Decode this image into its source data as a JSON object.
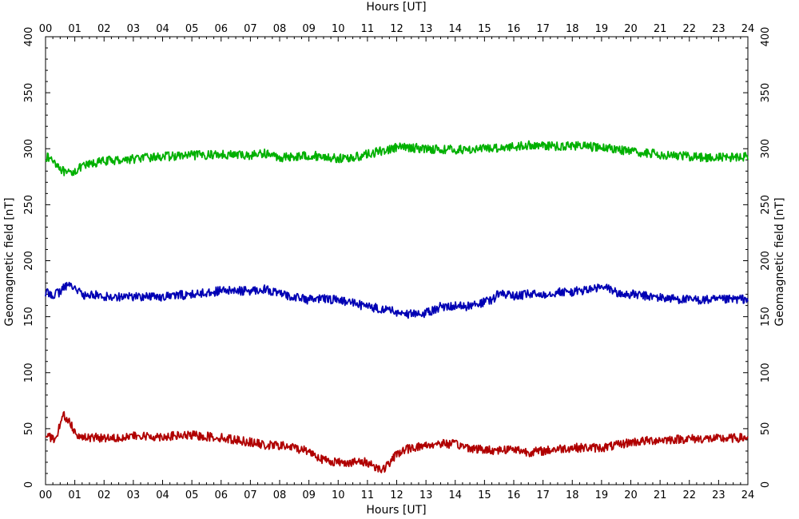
{
  "chart_data": {
    "type": "line",
    "xlabel_top": "Hours [UT]",
    "xlabel_bottom": "Hours [UT]",
    "ylabel_left": "Geomagnetic field [nT]",
    "ylabel_right": "Geomagnetic field [nT]",
    "xlim": [
      0,
      24
    ],
    "ylim": [
      0,
      400
    ],
    "x_ticks": [
      "00",
      "01",
      "02",
      "03",
      "04",
      "05",
      "06",
      "07",
      "08",
      "09",
      "10",
      "11",
      "12",
      "13",
      "14",
      "15",
      "16",
      "17",
      "18",
      "19",
      "20",
      "21",
      "22",
      "23",
      "24"
    ],
    "y_ticks": [
      "0",
      "50",
      "100",
      "150",
      "200",
      "250",
      "300",
      "350",
      "400"
    ],
    "grid": false,
    "series": [
      {
        "color": "#00b000",
        "x": [
          0,
          0.3,
          0.5,
          0.7,
          0.9,
          1.2,
          1.5,
          2,
          3,
          4,
          5,
          6,
          7,
          7.5,
          8,
          8.5,
          9,
          9.5,
          10,
          10.5,
          11,
          11.5,
          12,
          12.5,
          13,
          14,
          15,
          15.5,
          16,
          16.5,
          17,
          17.5,
          18,
          18.5,
          19,
          19.5,
          20,
          21,
          22,
          23,
          24
        ],
        "values": [
          293,
          289,
          283,
          277,
          279,
          283,
          286,
          289,
          291,
          293,
          294,
          295,
          294,
          296,
          292,
          293,
          294,
          293,
          291,
          292,
          295,
          298,
          301,
          301,
          300,
          299,
          300,
          301,
          302,
          303,
          303,
          302,
          303,
          302,
          301,
          300,
          297,
          295,
          293,
          292,
          293
        ]
      },
      {
        "color": "#0000b4",
        "x": [
          0,
          0.3,
          0.5,
          0.7,
          0.9,
          1.1,
          1.3,
          1.6,
          2,
          3,
          4,
          5,
          6,
          7,
          7.5,
          8,
          8.5,
          9,
          9.5,
          10,
          10.5,
          11,
          11.5,
          12,
          12.5,
          13,
          13.5,
          14,
          14.5,
          15,
          15.3,
          15.5,
          16,
          16.5,
          17,
          17.5,
          18,
          18.5,
          19,
          19.3,
          19.6,
          20,
          21,
          22,
          23,
          24
        ],
        "values": [
          171,
          170,
          172,
          178,
          178,
          174,
          168,
          170,
          168,
          168,
          168,
          170,
          173,
          173,
          175,
          170,
          168,
          165,
          166,
          165,
          162,
          159,
          157,
          154,
          152,
          153,
          159,
          160,
          159,
          163,
          165,
          172,
          168,
          170,
          170,
          172,
          172,
          174,
          176,
          175,
          170,
          170,
          167,
          165,
          165,
          166
        ]
      },
      {
        "color": "#b00000",
        "x": [
          0,
          0.2,
          0.35,
          0.5,
          0.6,
          0.8,
          1.0,
          1.2,
          1.5,
          2,
          3,
          4,
          5,
          6,
          7,
          7.5,
          8,
          8.5,
          9,
          9.5,
          10,
          10.5,
          11,
          11.5,
          11.8,
          12,
          12.5,
          13,
          13.5,
          14,
          14.5,
          15,
          15.5,
          16,
          16.5,
          17,
          17.5,
          18,
          18.5,
          19,
          19.5,
          20,
          21,
          22,
          23,
          24
        ],
        "values": [
          45,
          42,
          38,
          55,
          62,
          57,
          48,
          42,
          42,
          42,
          43,
          43,
          44,
          42,
          38,
          35,
          35,
          33,
          30,
          22,
          20,
          20,
          20,
          13,
          20,
          28,
          33,
          35,
          37,
          36,
          33,
          31,
          31,
          32,
          29,
          30,
          32,
          33,
          33,
          33,
          35,
          38,
          40,
          41,
          41,
          42
        ]
      }
    ]
  }
}
